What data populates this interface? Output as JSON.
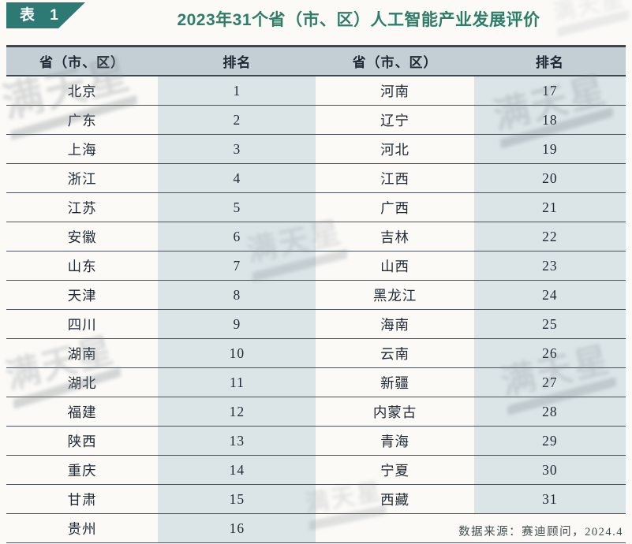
{
  "table_label": "表 1",
  "title": "2023年31个省（市、区）人工智能产业发展评价",
  "source": "数据来源：赛迪顾问，2024.4",
  "watermark": {
    "text": "满天星"
  },
  "colors": {
    "badge_bg": "#2d7a74",
    "title": "#2e7d68",
    "header_bg": "#c4cfd5",
    "rank_tint": "#dbe5e8",
    "border": "#4a5158",
    "border_dark": "#3e464d",
    "text": "#1e2733",
    "footer": "#414d4b",
    "watermark": "#878f95"
  },
  "table": {
    "columns": [
      "省（市、区）",
      "排名",
      "省（市、区）",
      "排名"
    ],
    "rows": [
      {
        "p1": "北京",
        "r1": "1",
        "p2": "河南",
        "r2": "17"
      },
      {
        "p1": "广东",
        "r1": "2",
        "p2": "辽宁",
        "r2": "18"
      },
      {
        "p1": "上海",
        "r1": "3",
        "p2": "河北",
        "r2": "19"
      },
      {
        "p1": "浙江",
        "r1": "4",
        "p2": "江西",
        "r2": "20"
      },
      {
        "p1": "江苏",
        "r1": "5",
        "p2": "广西",
        "r2": "21"
      },
      {
        "p1": "安徽",
        "r1": "6",
        "p2": "吉林",
        "r2": "22"
      },
      {
        "p1": "山东",
        "r1": "7",
        "p2": "山西",
        "r2": "23"
      },
      {
        "p1": "天津",
        "r1": "8",
        "p2": "黑龙江",
        "r2": "24"
      },
      {
        "p1": "四川",
        "r1": "9",
        "p2": "海南",
        "r2": "25"
      },
      {
        "p1": "湖南",
        "r1": "10",
        "p2": "云南",
        "r2": "26"
      },
      {
        "p1": "湖北",
        "r1": "11",
        "p2": "新疆",
        "r2": "27"
      },
      {
        "p1": "福建",
        "r1": "12",
        "p2": "内蒙古",
        "r2": "28"
      },
      {
        "p1": "陕西",
        "r1": "13",
        "p2": "青海",
        "r2": "29"
      },
      {
        "p1": "重庆",
        "r1": "14",
        "p2": "宁夏",
        "r2": "30"
      },
      {
        "p1": "甘肃",
        "r1": "15",
        "p2": "西藏",
        "r2": "31"
      },
      {
        "p1": "贵州",
        "r1": "16",
        "p2": "",
        "r2": ""
      }
    ]
  },
  "chart_data": {
    "type": "table",
    "title": "2023年31个省（市、区）人工智能产业发展评价",
    "columns": [
      "省（市、区）",
      "排名",
      "省（市、区）",
      "排名"
    ],
    "rankings": [
      {
        "province": "北京",
        "rank": 1
      },
      {
        "province": "广东",
        "rank": 2
      },
      {
        "province": "上海",
        "rank": 3
      },
      {
        "province": "浙江",
        "rank": 4
      },
      {
        "province": "江苏",
        "rank": 5
      },
      {
        "province": "安徽",
        "rank": 6
      },
      {
        "province": "山东",
        "rank": 7
      },
      {
        "province": "天津",
        "rank": 8
      },
      {
        "province": "四川",
        "rank": 9
      },
      {
        "province": "湖南",
        "rank": 10
      },
      {
        "province": "湖北",
        "rank": 11
      },
      {
        "province": "福建",
        "rank": 12
      },
      {
        "province": "陕西",
        "rank": 13
      },
      {
        "province": "重庆",
        "rank": 14
      },
      {
        "province": "甘肃",
        "rank": 15
      },
      {
        "province": "贵州",
        "rank": 16
      },
      {
        "province": "河南",
        "rank": 17
      },
      {
        "province": "辽宁",
        "rank": 18
      },
      {
        "province": "河北",
        "rank": 19
      },
      {
        "province": "江西",
        "rank": 20
      },
      {
        "province": "广西",
        "rank": 21
      },
      {
        "province": "吉林",
        "rank": 22
      },
      {
        "province": "山西",
        "rank": 23
      },
      {
        "province": "黑龙江",
        "rank": 24
      },
      {
        "province": "海南",
        "rank": 25
      },
      {
        "province": "云南",
        "rank": 26
      },
      {
        "province": "新疆",
        "rank": 27
      },
      {
        "province": "内蒙古",
        "rank": 28
      },
      {
        "province": "青海",
        "rank": 29
      },
      {
        "province": "宁夏",
        "rank": 30
      },
      {
        "province": "西藏",
        "rank": 31
      }
    ],
    "source": "数据来源：赛迪顾问，2024.4"
  }
}
